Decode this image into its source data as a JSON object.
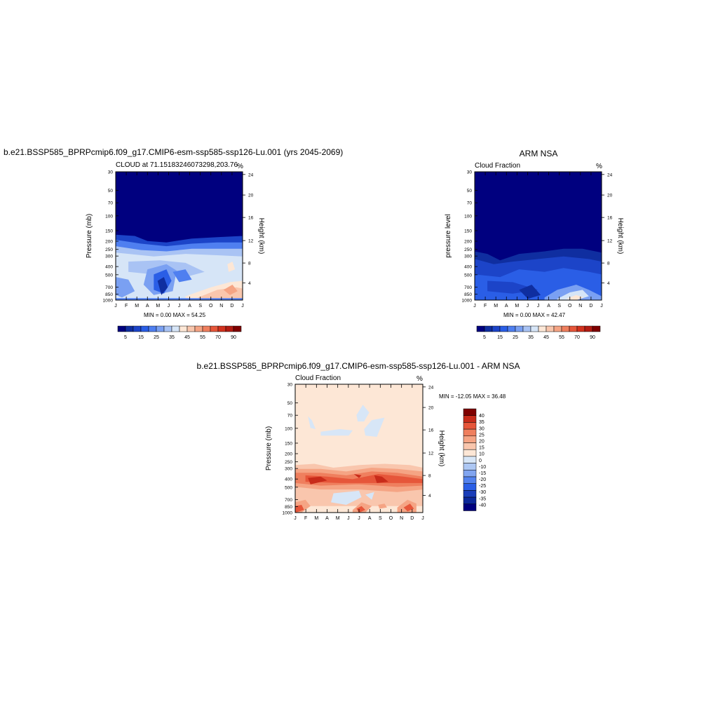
{
  "colors": {
    "levels_main": [
      "#00007f",
      "#0f2ea0",
      "#1c44c8",
      "#2a5ee6",
      "#4f7ff0",
      "#7aa0f2",
      "#a9c3f4",
      "#d6e5f7",
      "#fde7d6",
      "#f9c6ad",
      "#f5a484",
      "#ef7f5e",
      "#e6563a",
      "#d2321e",
      "#b31c13",
      "#7f0000"
    ],
    "levels_diff": [
      "#00007f",
      "#0c289a",
      "#1a3db9",
      "#2a5ee6",
      "#5382ee",
      "#81a5f0",
      "#adc7f3",
      "#d7e6f7",
      "#fde7d6",
      "#f9c6ad",
      "#f5a484",
      "#ef7f5e",
      "#e6563a",
      "#c82b1a",
      "#7f0000"
    ]
  },
  "panels": [
    {
      "title": "b.e21.BSSP585_BPRPcmip6.f09_g17.CMIP6-esm-ssp585-ssp126-Lu.001 (yrs 2045-2069)",
      "left_label": "CLOUD at 71.15183246073298,203.76",
      "right_label": "%",
      "ylabel_left": "Pressure (mb)",
      "ylabel_right": "Height (km)",
      "minmax": "MIN =   0.00 MAX =  54.25"
    },
    {
      "title": "ARM NSA",
      "left_label": "Cloud Fraction",
      "right_label": "%",
      "ylabel_left": "pressure level",
      "ylabel_right": "Height (km)",
      "minmax": "MIN =   0.00 MAX =  42.47"
    },
    {
      "title": "b.e21.BSSP585_BPRPcmip6.f09_g17.CMIP6-esm-ssp585-ssp126-Lu.001 - ARM NSA",
      "left_label": "Cloud Fraction",
      "right_label": "%",
      "ylabel_left": "Pressure (mb)",
      "ylabel_right": "Height (km)",
      "minmax": "MIN = -12.05 MAX =  36.48"
    }
  ],
  "chart_data": {
    "type": "heatmap",
    "x_months": [
      "J",
      "F",
      "M",
      "A",
      "M",
      "J",
      "J",
      "A",
      "S",
      "O",
      "N",
      "D",
      "J"
    ],
    "pressure_ticks": [
      "30",
      "50",
      "70",
      "100",
      "150",
      "200",
      "250",
      "300",
      "400",
      "500",
      "700",
      "850",
      "1000"
    ],
    "height_ticks": [
      "24",
      "20",
      "16",
      "12",
      "8",
      "4"
    ],
    "colorbar_labels_main": [
      "5",
      "15",
      "25",
      "35",
      "45",
      "55",
      "70",
      "90"
    ],
    "colorbar_labels_diff": [
      "40",
      "35",
      "30",
      "25",
      "20",
      "15",
      "10",
      "0",
      "-10",
      "-15",
      "-20",
      "-25",
      "-30",
      "-35",
      "-40"
    ]
  }
}
